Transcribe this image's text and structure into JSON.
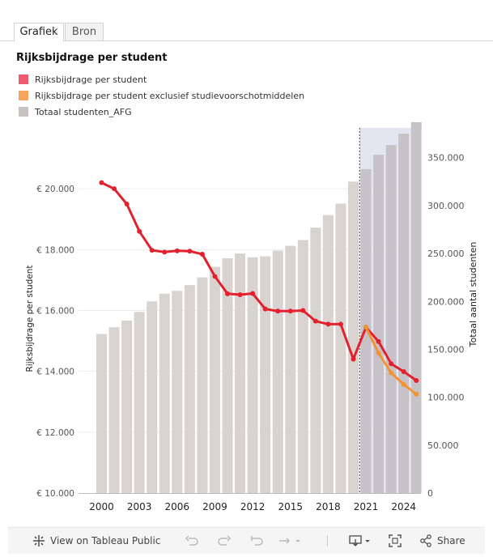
{
  "tabs": [
    {
      "label": "Grafiek",
      "active": true
    },
    {
      "label": "Bron",
      "active": false
    }
  ],
  "chart_data": {
    "type": "bar+line",
    "title": "Rijksbijdrage per student",
    "legend": [
      {
        "label": "Rijksbijdrage per student",
        "color": "#ee5a6e"
      },
      {
        "label": "Rijksbijdrage per student exclusief studievoorschotmiddelen",
        "color": "#f5a55c"
      },
      {
        "label": "Totaal studenten_AFG",
        "color": "#c9c1bf"
      }
    ],
    "x": [
      2000,
      2001,
      2002,
      2003,
      2004,
      2005,
      2006,
      2007,
      2008,
      2009,
      2010,
      2011,
      2012,
      2013,
      2014,
      2015,
      2016,
      2017,
      2018,
      2019,
      2020,
      2021,
      2022,
      2023,
      2024,
      2025
    ],
    "x_tick_labels": [
      "2000",
      "2003",
      "2006",
      "2009",
      "2012",
      "2015",
      "2018",
      "2021",
      "2024"
    ],
    "forecast_from": 2020.5,
    "bar_series": {
      "name": "Totaal studenten_AFG",
      "axis": "right",
      "values": [
        166000,
        173000,
        180000,
        189000,
        200000,
        208000,
        211000,
        217000,
        225000,
        236000,
        245000,
        250000,
        246000,
        247000,
        253000,
        258000,
        264000,
        277000,
        290000,
        302000,
        325000,
        338000,
        353000,
        363000,
        375000,
        387000
      ]
    },
    "line_series": [
      {
        "name": "Rijksbijdrage per student",
        "color": "#e3202e",
        "axis": "left",
        "values": [
          20200,
          20000,
          19500,
          18600,
          17980,
          17920,
          17960,
          17950,
          17850,
          17120,
          16550,
          16520,
          16560,
          16050,
          15980,
          15980,
          16000,
          15650,
          15550,
          15550,
          14400,
          15450,
          14980,
          14250,
          13990,
          13700
        ]
      },
      {
        "name": "Rijksbijdrage per student exclusief studievoorschotmiddelen",
        "color": "#f39332",
        "axis": "left",
        "x": [
          2021,
          2022,
          2023,
          2024,
          2025
        ],
        "values": [
          15450,
          14600,
          13950,
          13570,
          13250
        ]
      }
    ],
    "y_left": {
      "label": "Rijksbijdrage per student",
      "range": [
        10000,
        22000
      ],
      "ticks": [
        10000,
        12000,
        14000,
        16000,
        18000,
        20000
      ],
      "tick_labels": [
        "€ 10.000",
        "€ 12.000",
        "€ 14.000",
        "€ 16.000",
        "€ 18.000",
        "€ 20.000"
      ]
    },
    "y_right": {
      "label": "Totaal aantal studenten",
      "range": [
        0,
        381000
      ],
      "ticks": [
        0,
        50000,
        100000,
        150000,
        200000,
        250000,
        300000,
        350000
      ],
      "tick_labels": [
        "0",
        "50.000",
        "100.000",
        "150.000",
        "200.000",
        "250.000",
        "300.000",
        "350.000"
      ]
    }
  },
  "toolbar": {
    "view_label": "View on Tableau Public",
    "share_label": "Share"
  }
}
